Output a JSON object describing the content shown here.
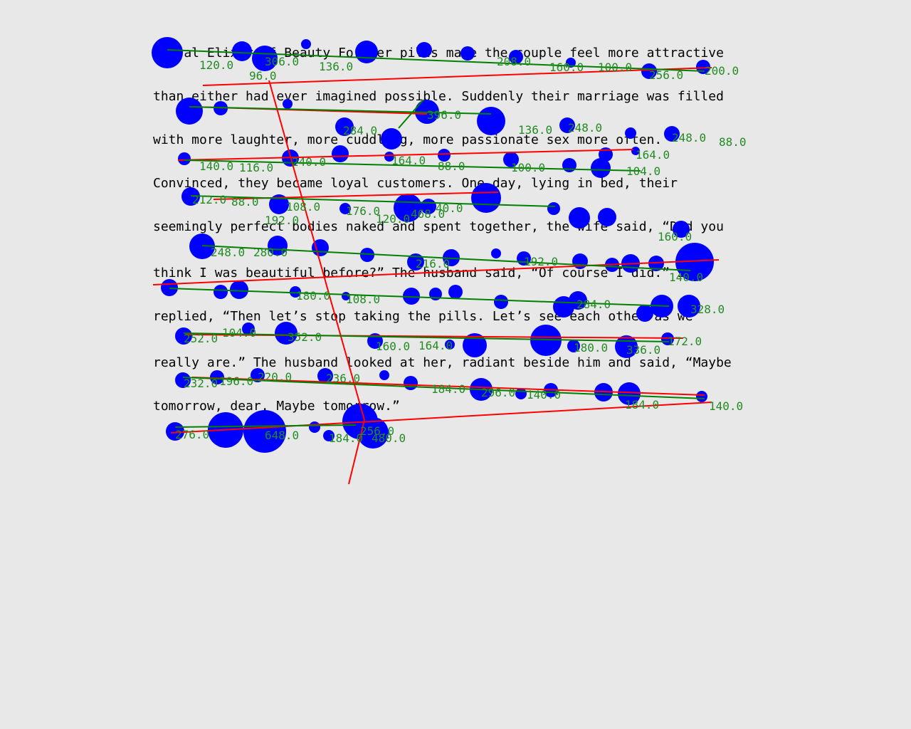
{
  "story": {
    "lines": [
      "Astral Elixir of Beauty Forever pills made the couple feel more attractive",
      "than either had ever imagined possible. Suddenly their marriage was filled",
      "with more laughter, more cuddling, more passionate sex more often.",
      "Convinced, they became loyal customers. One day, lying in bed, their",
      "seemingly perfect bodies naked and spent together, the wife said, “Did you",
      "think I was beautiful before?” The husband said, “Of course I did.” She",
      "replied, “Then let’s stop taking the pills. Let’s see each other as we",
      "really are.” The husband looked at her, radiant beside him and said, “Maybe",
      "tomorrow, dear. Maybe tomorrow.”"
    ]
  },
  "overlay": {
    "labels": [
      "120.0",
      "96.0",
      "306.0",
      "136.0",
      "256.0",
      "200.0",
      "208.0",
      "160.0",
      "100.0",
      "396.0",
      "284.0",
      "136.0",
      "248.0",
      "248.0",
      "88.0",
      "140.0",
      "116.0",
      "240.0",
      "164.0",
      "88.0",
      "100.0",
      "164.0",
      "104.0",
      "212.0",
      "88.0",
      "108.0",
      "176.0",
      "120.0",
      "468.0",
      "40.0",
      "192.0",
      "160.0",
      "248.0",
      "280.0",
      "216.0",
      "192.0",
      "140.0",
      "180.0",
      "108.0",
      "284.0",
      "328.0",
      "252.0",
      "104.0",
      "352.0",
      "160.0",
      "164.0",
      "180.0",
      "336.0",
      "172.0",
      "232.0",
      "196.0",
      "220.0",
      "236.0",
      "184.0",
      "296.0",
      "140.0",
      "184.0",
      "140.0",
      "276.0",
      "648.0",
      "184.0",
      "480.0",
      "256.0"
    ]
  }
}
